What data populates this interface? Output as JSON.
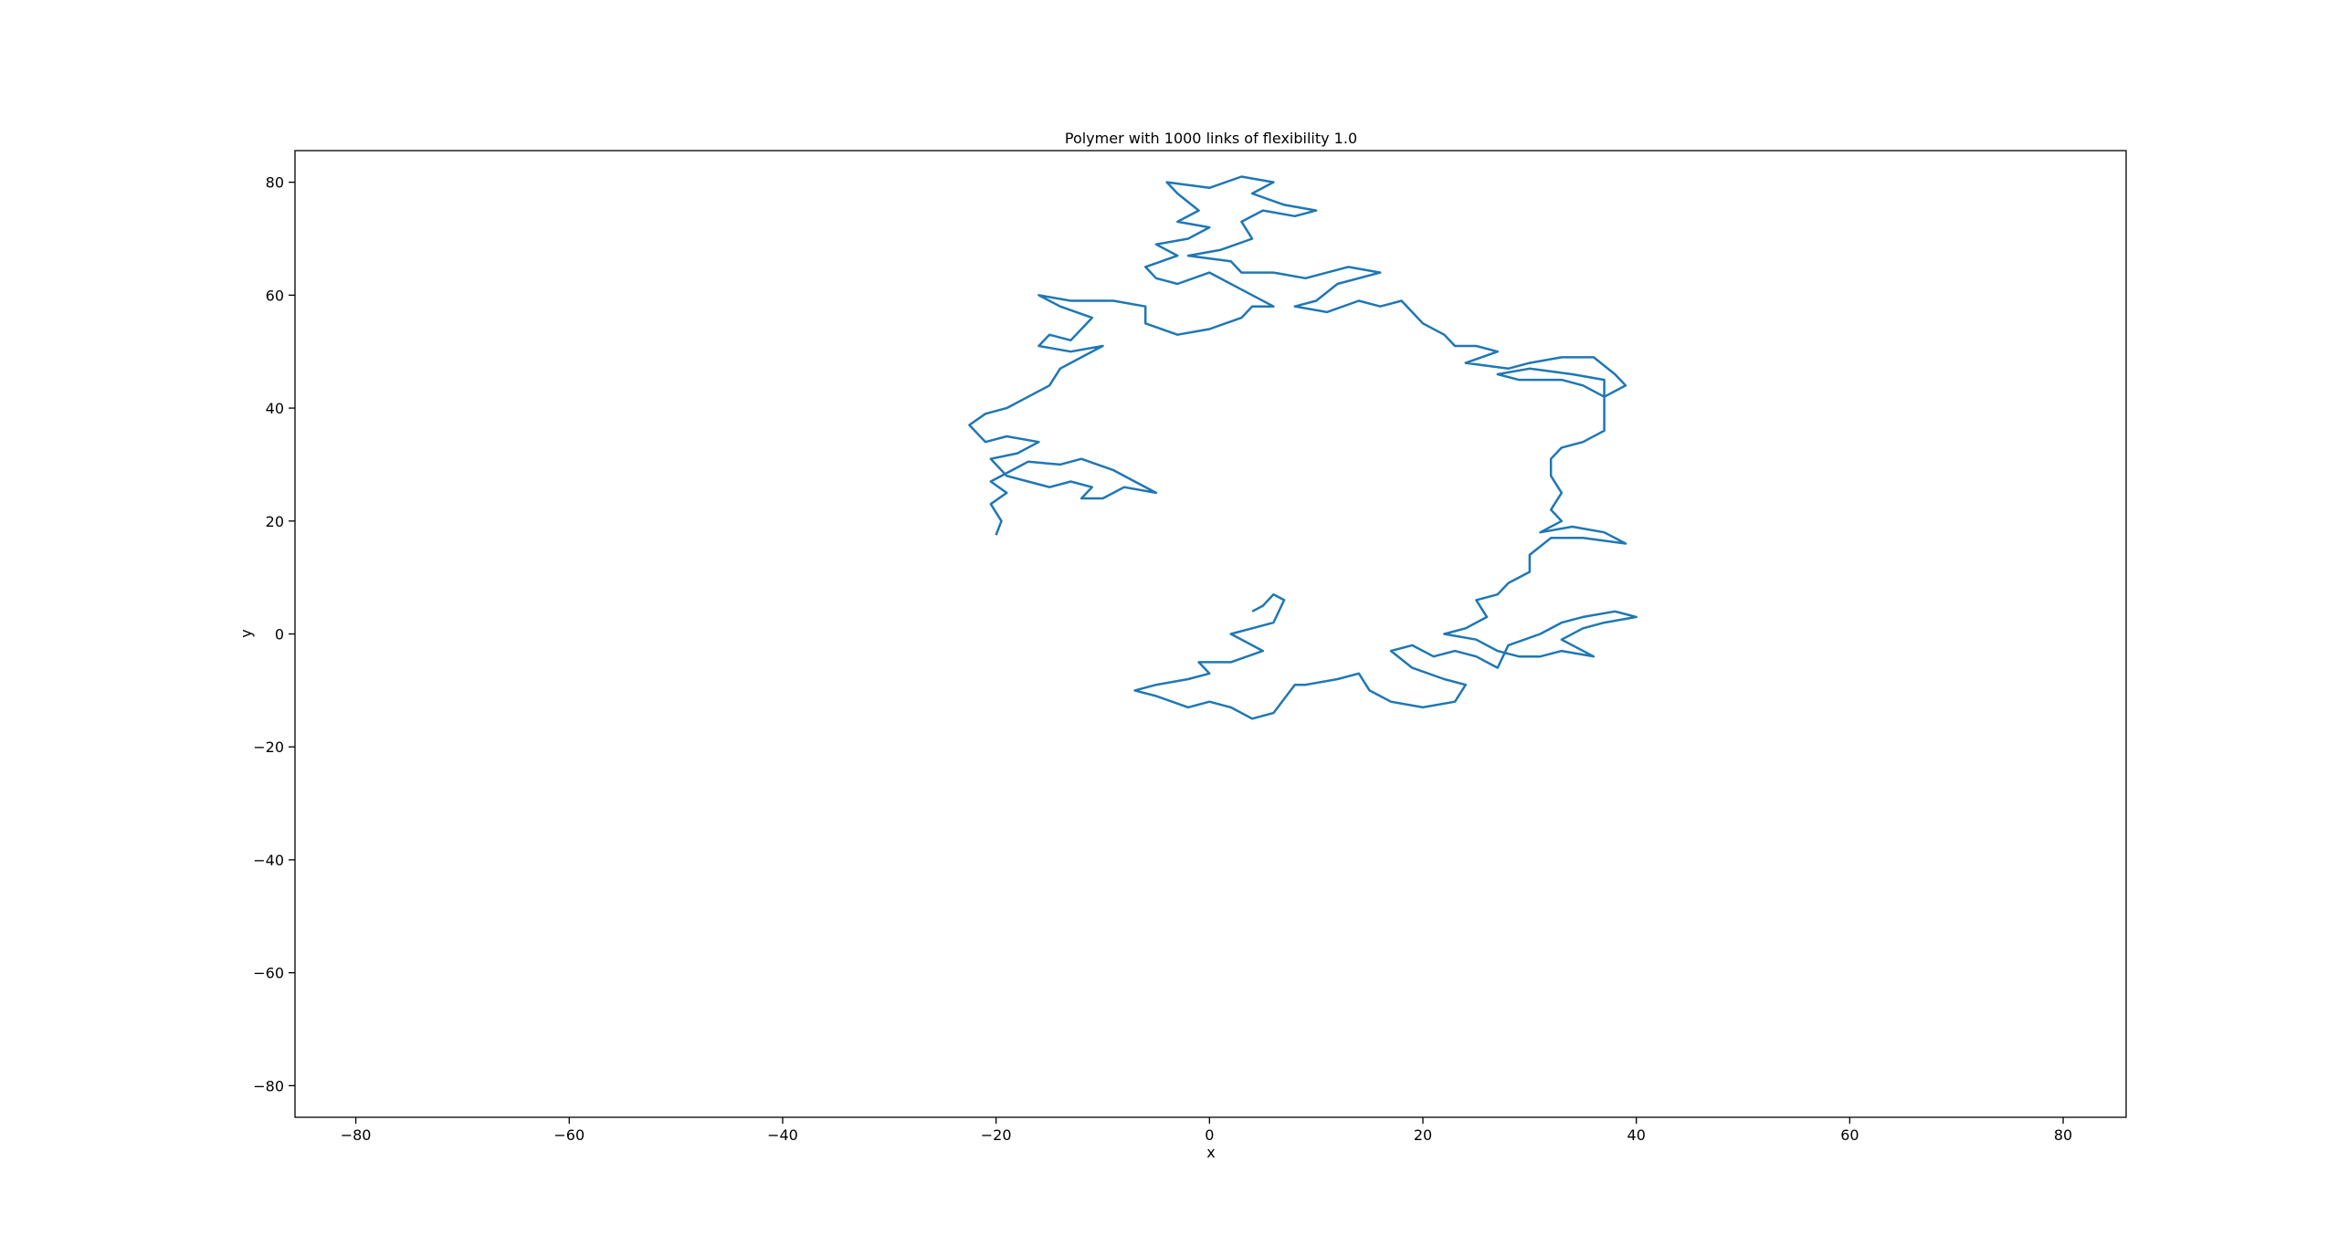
{
  "chart_data": {
    "type": "line",
    "title": "Polymer with 1000 links of flexibility 1.0",
    "xlabel": "x",
    "ylabel": "y",
    "xlim": [
      -85.7,
      85.9
    ],
    "ylim": [
      -85.6,
      85.6
    ],
    "xticks": [
      {
        "value": -80,
        "label": "−80"
      },
      {
        "value": -60,
        "label": "−60"
      },
      {
        "value": -40,
        "label": "−40"
      },
      {
        "value": -20,
        "label": "−20"
      },
      0,
      20,
      40,
      60,
      80
    ],
    "yticks": [
      {
        "value": -80,
        "label": "−80"
      },
      {
        "value": -60,
        "label": "−60"
      },
      {
        "value": -40,
        "label": "−40"
      },
      {
        "value": -20,
        "label": "−20"
      },
      0,
      20,
      40,
      60,
      80
    ],
    "grid": false,
    "series": [
      {
        "color": "#1f77b4",
        "x": [
          -20,
          -19.5,
          -20.5,
          -19,
          -20.5,
          -18.5,
          -17,
          -14,
          -12,
          -9,
          -7,
          -5,
          -8,
          -10,
          -12,
          -11,
          -13,
          -15,
          -17,
          -19,
          -20.5,
          -18,
          -16,
          -19,
          -21,
          -22.5,
          -21,
          -19,
          -17,
          -15,
          -14,
          -12,
          -10,
          -13,
          -16,
          -15,
          -13,
          -11,
          -14,
          -16,
          -13,
          -9,
          -6,
          -6,
          -3,
          0,
          3,
          4,
          6,
          3,
          0,
          -3,
          -5,
          -6,
          -3,
          -5,
          -2,
          0,
          -3,
          -1,
          -3,
          -4,
          0,
          3,
          6,
          4,
          7,
          10,
          8,
          5,
          3,
          4,
          1,
          -2,
          2,
          3,
          6,
          9,
          13,
          16,
          12,
          10,
          8,
          11,
          14,
          16,
          18,
          19,
          20,
          22,
          23,
          25,
          27,
          24,
          28,
          30,
          33,
          36,
          38,
          39,
          37,
          35,
          33,
          29,
          27,
          30,
          34,
          37,
          37,
          37,
          35,
          33,
          32,
          32,
          33,
          32,
          33,
          31,
          34,
          37,
          39,
          35,
          32,
          30,
          30,
          28,
          27,
          25,
          26,
          24,
          22,
          25,
          27,
          29,
          31,
          33,
          36,
          33,
          35,
          37,
          40,
          38,
          35,
          33,
          31,
          28,
          27,
          25,
          23,
          21,
          19,
          17,
          19,
          22,
          24,
          23,
          20,
          17,
          15,
          14,
          12,
          9,
          8,
          6,
          4,
          2,
          0,
          -2,
          -5,
          -7,
          -5,
          -2,
          0,
          -1,
          2,
          5,
          3,
          2,
          4,
          6,
          7,
          6,
          5,
          4
        ],
        "y": [
          17.5,
          20,
          23,
          25,
          27,
          29,
          30.5,
          30,
          31,
          29,
          27,
          25,
          26,
          24,
          24,
          26,
          27,
          26,
          27,
          28,
          31,
          32,
          34,
          35,
          34,
          37,
          39,
          40,
          42,
          44,
          47,
          49,
          51,
          50,
          51,
          53,
          52,
          56,
          58,
          60,
          59,
          59,
          58,
          55,
          53,
          54,
          56,
          58,
          58,
          61,
          64,
          62,
          63,
          65,
          67,
          69,
          70,
          72,
          73,
          75,
          78,
          80,
          79,
          81,
          80,
          78,
          76,
          75,
          74,
          75,
          73,
          70,
          68,
          67,
          66,
          64,
          64,
          63,
          65,
          64,
          62,
          59,
          58,
          57,
          59,
          58,
          59,
          57,
          55,
          53,
          51,
          51,
          50,
          48,
          47,
          48,
          49,
          49,
          46,
          44,
          42,
          44,
          45,
          45,
          46,
          47,
          46,
          45,
          40,
          36,
          34,
          33,
          31,
          28,
          25,
          22,
          20,
          18,
          19,
          18,
          16,
          17,
          17,
          14,
          11,
          9,
          7,
          6,
          3,
          1,
          0,
          -1,
          -3,
          -4,
          -4,
          -3,
          -4,
          -1,
          1,
          2,
          3,
          4,
          3,
          2,
          0,
          -2,
          -6,
          -4,
          -3,
          -4,
          -2,
          -3,
          -6,
          -8,
          -9,
          -12,
          -13,
          -12,
          -10,
          -7,
          -8,
          -9,
          -9,
          -14,
          -15,
          -13,
          -12,
          -13,
          -11,
          -10,
          -9,
          -8,
          -7,
          -5,
          -5,
          -3,
          -1,
          0,
          1,
          2,
          6,
          7,
          5,
          4
        ]
      }
    ]
  }
}
